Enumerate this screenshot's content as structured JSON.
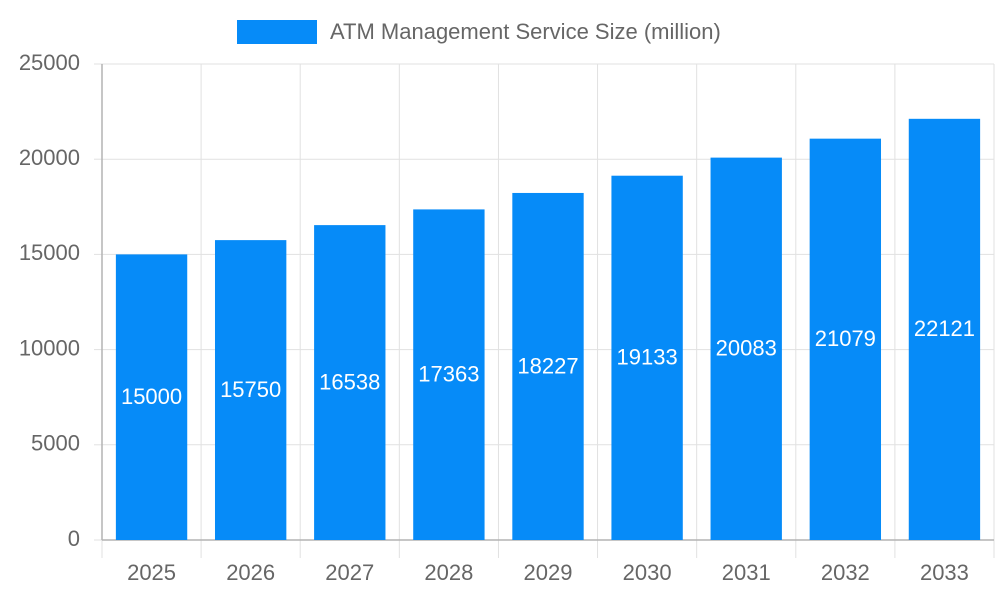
{
  "chart_data": {
    "type": "bar",
    "categories": [
      "2025",
      "2026",
      "2027",
      "2028",
      "2029",
      "2030",
      "2031",
      "2032",
      "2033"
    ],
    "series": [
      {
        "name": "ATM Management Service Size (million)",
        "color": "#068bf8",
        "values": [
          15000,
          15750,
          16538,
          17363,
          18227,
          19133,
          20083,
          21079,
          22121
        ]
      }
    ],
    "ylim": [
      0,
      25000
    ],
    "yticks": [
      0,
      5000,
      10000,
      15000,
      20000,
      25000
    ],
    "grid": true,
    "legend": "top",
    "data_labels": true
  }
}
